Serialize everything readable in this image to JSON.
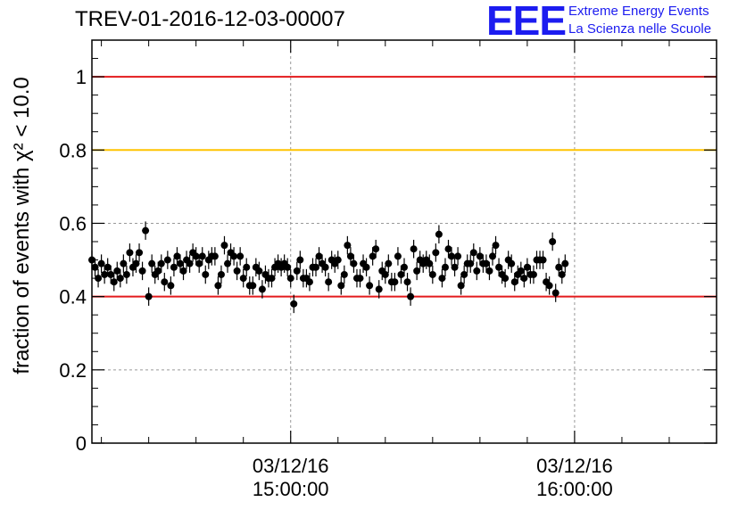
{
  "logo": {
    "mark": "EEE",
    "line1": "Extreme Energy Events",
    "line2": "La Scienza nelle Scuole"
  },
  "colors": {
    "red": "#e31a1c",
    "orange": "#ffc400",
    "logo_blue": "#1c1cf0"
  },
  "chart_data": {
    "type": "scatter",
    "title": "TREV-01-2016-12-03-00007",
    "ylabel": "fraction of events with χ² < 10.0",
    "xlabel": "",
    "xlim": [
      "03/12/16 14:18:00",
      "03/12/16 16:30:00"
    ],
    "ylim": [
      0,
      1.1
    ],
    "yticks": [
      0,
      0.2,
      0.4,
      0.6,
      0.8,
      1
    ],
    "ytick_labels": [
      "0",
      "0.2",
      "0.4",
      "0.6",
      "0.8",
      "1"
    ],
    "xticks": [
      {
        "t": "03/12/16 15:00:00",
        "label_line1": "03/12/16",
        "label_line2": "15:00:00"
      },
      {
        "t": "03/12/16 16:00:00",
        "label_line1": "03/12/16",
        "label_line2": "16:00:00"
      }
    ],
    "grid": true,
    "reference_lines": [
      {
        "y": 1.0,
        "color": "#e31a1c"
      },
      {
        "y": 0.8,
        "color": "#ffc400"
      },
      {
        "y": 0.4,
        "color": "#e31a1c"
      }
    ],
    "series": [
      {
        "x_start": "03/12/16 14:18:00",
        "x_step_seconds": 40,
        "error": 0.025,
        "y": [
          0.5,
          0.48,
          0.45,
          0.49,
          0.46,
          0.48,
          0.46,
          0.44,
          0.47,
          0.45,
          0.49,
          0.46,
          0.52,
          0.48,
          0.49,
          0.52,
          0.47,
          0.58,
          0.4,
          0.49,
          0.46,
          0.47,
          0.49,
          0.44,
          0.5,
          0.43,
          0.48,
          0.51,
          0.49,
          0.47,
          0.5,
          0.49,
          0.52,
          0.51,
          0.49,
          0.51,
          0.46,
          0.5,
          0.51,
          0.51,
          0.43,
          0.46,
          0.54,
          0.49,
          0.52,
          0.51,
          0.47,
          0.51,
          0.45,
          0.48,
          0.43,
          0.43,
          0.48,
          0.47,
          0.42,
          0.46,
          0.45,
          0.45,
          0.48,
          0.49,
          0.48,
          0.49,
          0.48,
          0.45,
          0.38,
          0.47,
          0.5,
          0.45,
          0.45,
          0.44,
          0.48,
          0.48,
          0.51,
          0.49,
          0.48,
          0.44,
          0.5,
          0.49,
          0.5,
          0.43,
          0.46,
          0.54,
          0.51,
          0.49,
          0.45,
          0.45,
          0.49,
          0.48,
          0.43,
          0.51,
          0.53,
          0.42,
          0.47,
          0.46,
          0.49,
          0.44,
          0.44,
          0.51,
          0.46,
          0.48,
          0.44,
          0.4,
          0.53,
          0.47,
          0.5,
          0.49,
          0.5,
          0.49,
          0.46,
          0.52,
          0.57,
          0.45,
          0.48,
          0.53,
          0.51,
          0.48,
          0.51,
          0.43,
          0.46,
          0.49,
          0.49,
          0.52,
          0.47,
          0.51,
          0.49,
          0.49,
          0.47,
          0.51,
          0.54,
          0.48,
          0.46,
          0.45,
          0.5,
          0.49,
          0.44,
          0.46,
          0.47,
          0.45,
          0.48,
          0.46,
          0.46,
          0.5,
          0.5,
          0.5,
          0.44,
          0.43,
          0.55,
          0.41,
          0.48,
          0.46,
          0.49
        ]
      }
    ]
  }
}
